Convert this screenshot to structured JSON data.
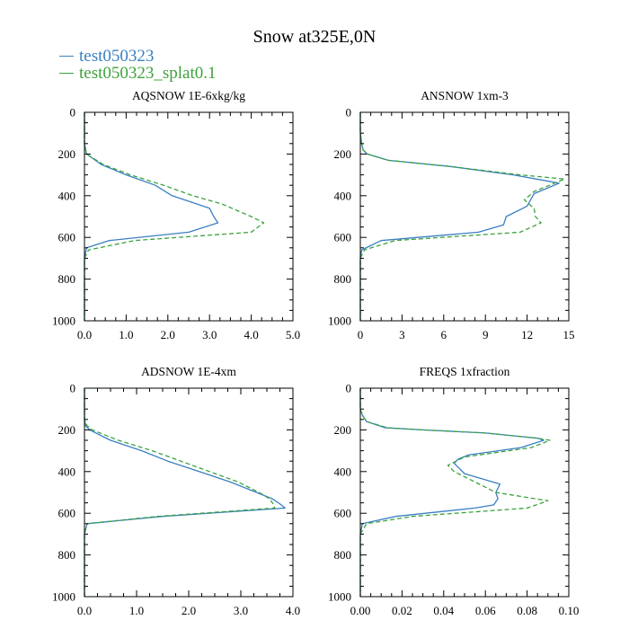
{
  "title": "Snow at325E,0N",
  "legend": [
    {
      "name": "test050323",
      "color": "#3a7fc2"
    },
    {
      "name": "test050323_splat0.1",
      "color": "#3ca33c"
    }
  ],
  "chart_data": [
    {
      "type": "line",
      "title": "AQSNOW  1E-6xkg/kg",
      "ylim": [
        1000,
        0
      ],
      "xlim": [
        0,
        5
      ],
      "yticks": [
        0,
        200,
        400,
        600,
        800,
        1000
      ],
      "ytick_labels": [
        "0",
        "200",
        "400",
        "600",
        "800",
        "1000"
      ],
      "xticks": [
        0,
        1,
        2,
        3,
        4,
        5
      ],
      "xtick_labels": [
        "0.0",
        "1.0",
        "2.0",
        "3.0",
        "4.0",
        "5.0"
      ],
      "series": [
        {
          "name": "test050323",
          "style": "solid",
          "color": "#3a7fc2",
          "y": [
            0,
            100,
            150,
            200,
            250,
            300,
            350,
            400,
            460,
            500,
            530,
            575,
            615,
            650,
            700,
            1000
          ],
          "x": [
            0,
            0,
            0,
            0.05,
            0.4,
            1.0,
            1.7,
            2.1,
            3.0,
            3.1,
            3.2,
            2.5,
            0.6,
            0.05,
            0,
            0
          ]
        },
        {
          "name": "test050323_splat0.1",
          "style": "dashed",
          "color": "#3ca33c",
          "y": [
            0,
            100,
            150,
            200,
            250,
            300,
            350,
            400,
            440,
            500,
            530,
            575,
            615,
            660,
            700,
            1000
          ],
          "x": [
            0,
            0,
            0,
            0.05,
            0.45,
            1.1,
            1.9,
            2.6,
            3.3,
            4.0,
            4.3,
            4.0,
            1.2,
            0.1,
            0,
            0
          ]
        }
      ]
    },
    {
      "type": "line",
      "title": "ANSNOW  1xm-3",
      "ylim": [
        1000,
        0
      ],
      "xlim": [
        0,
        15
      ],
      "yticks": [
        0,
        200,
        400,
        600,
        800,
        1000
      ],
      "ytick_labels": [
        "0",
        "200",
        "400",
        "600",
        "800",
        "1000"
      ],
      "xticks": [
        0,
        3,
        6,
        9,
        12,
        15
      ],
      "xtick_labels": [
        "0",
        "3",
        "6",
        "9",
        "12",
        "15"
      ],
      "series": [
        {
          "name": "test050323",
          "style": "solid",
          "color": "#3a7fc2",
          "y": [
            0,
            100,
            150,
            180,
            200,
            230,
            260,
            300,
            330,
            340,
            390,
            450,
            500,
            540,
            575,
            615,
            660,
            700,
            1000
          ],
          "x": [
            0,
            0,
            0.1,
            0.2,
            0.5,
            2.0,
            6.5,
            11.0,
            13.5,
            14.3,
            12.5,
            12.0,
            10.5,
            10.3,
            8.5,
            1.5,
            0.1,
            0,
            0
          ]
        },
        {
          "name": "test050323_splat0.1",
          "style": "dashed",
          "color": "#3ca33c",
          "y": [
            0,
            100,
            150,
            180,
            200,
            230,
            260,
            300,
            320,
            380,
            420,
            460,
            500,
            530,
            575,
            615,
            660,
            700,
            1000
          ],
          "x": [
            0,
            0,
            0.1,
            0.2,
            0.5,
            2.0,
            6.5,
            11.5,
            14.7,
            12.5,
            11.8,
            12.5,
            12.6,
            13.0,
            11.5,
            2.5,
            0.3,
            0,
            0
          ]
        }
      ]
    },
    {
      "type": "line",
      "title": "ADSNOW  1E-4xm",
      "ylim": [
        1000,
        0
      ],
      "xlim": [
        0,
        4
      ],
      "yticks": [
        0,
        200,
        400,
        600,
        800,
        1000
      ],
      "ytick_labels": [
        "0",
        "200",
        "400",
        "600",
        "800",
        "1000"
      ],
      "xticks": [
        0,
        1,
        2,
        3,
        4
      ],
      "xtick_labels": [
        "0.0",
        "1.0",
        "2.0",
        "3.0",
        "4.0"
      ],
      "series": [
        {
          "name": "test050323",
          "style": "solid",
          "color": "#3a7fc2",
          "y": [
            0,
            100,
            150,
            180,
            200,
            250,
            300,
            350,
            400,
            450,
            500,
            530,
            555,
            575,
            615,
            650,
            700,
            1000
          ],
          "x": [
            0,
            0,
            0,
            0.02,
            0.1,
            0.5,
            1.1,
            1.6,
            2.2,
            2.8,
            3.3,
            3.6,
            3.75,
            3.85,
            1.5,
            0.05,
            0,
            0
          ]
        },
        {
          "name": "test050323_splat0.1",
          "style": "dashed",
          "color": "#3ca33c",
          "y": [
            0,
            100,
            150,
            180,
            200,
            250,
            300,
            350,
            400,
            450,
            500,
            530,
            555,
            575,
            615,
            650,
            700,
            1000
          ],
          "x": [
            0,
            0,
            0,
            0.05,
            0.15,
            0.65,
            1.3,
            1.85,
            2.4,
            2.95,
            3.35,
            3.55,
            3.62,
            3.65,
            1.4,
            0.05,
            0,
            0
          ]
        }
      ]
    },
    {
      "type": "line",
      "title": "FREQS  1xfraction",
      "ylim": [
        1000,
        0
      ],
      "xlim": [
        0,
        0.1
      ],
      "yticks": [
        0,
        200,
        400,
        600,
        800,
        1000
      ],
      "ytick_labels": [
        "0",
        "200",
        "400",
        "600",
        "800",
        "1000"
      ],
      "xticks": [
        0,
        0.02,
        0.04,
        0.06,
        0.08,
        0.1
      ],
      "xtick_labels": [
        "0.00",
        "0.02",
        "0.04",
        "0.06",
        "0.08",
        "0.10"
      ],
      "series": [
        {
          "name": "test050323",
          "style": "solid",
          "color": "#3a7fc2",
          "y": [
            0,
            100,
            130,
            160,
            190,
            200,
            215,
            230,
            240,
            250,
            285,
            320,
            340,
            360,
            410,
            460,
            500,
            530,
            560,
            575,
            615,
            650,
            700,
            1000
          ],
          "x": [
            0,
            0,
            0.001,
            0.003,
            0.012,
            0.03,
            0.06,
            0.075,
            0.085,
            0.088,
            0.077,
            0.052,
            0.047,
            0.045,
            0.05,
            0.067,
            0.065,
            0.066,
            0.064,
            0.055,
            0.017,
            0.001,
            0,
            0
          ]
        },
        {
          "name": "test050323_splat0.1",
          "style": "dashed",
          "color": "#3ca33c",
          "y": [
            0,
            100,
            130,
            160,
            190,
            200,
            215,
            230,
            240,
            250,
            285,
            330,
            370,
            400,
            450,
            500,
            540,
            575,
            615,
            650,
            700,
            1000
          ],
          "x": [
            0,
            0,
            0.001,
            0.003,
            0.013,
            0.03,
            0.06,
            0.075,
            0.085,
            0.091,
            0.082,
            0.05,
            0.042,
            0.045,
            0.055,
            0.065,
            0.09,
            0.08,
            0.025,
            0.003,
            0,
            0
          ]
        }
      ]
    }
  ]
}
